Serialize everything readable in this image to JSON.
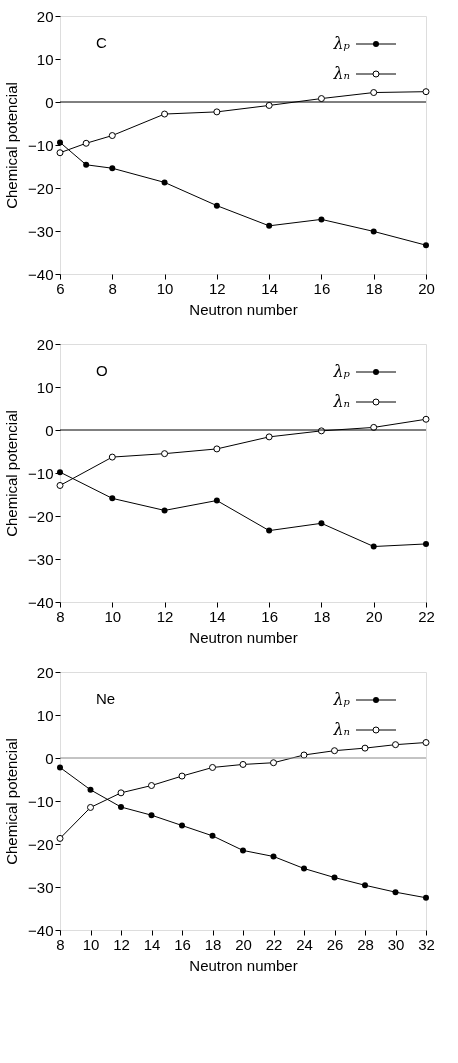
{
  "chart_data": [
    {
      "type": "line",
      "xlabel": "Neutron number",
      "ylabel": "Chemical potencial",
      "annotations": [
        "C"
      ],
      "x": [
        6,
        7,
        8,
        10,
        12,
        14,
        16,
        18,
        20
      ],
      "xlim": [
        6,
        20
      ],
      "ylim": [
        -40,
        20
      ],
      "xticks": [
        6,
        8,
        10,
        12,
        14,
        16,
        18,
        20
      ],
      "yticks": [
        -40,
        -30,
        -20,
        -10,
        0,
        10,
        20
      ],
      "ref_lines": [
        {
          "axis": "y",
          "value": 0,
          "color": "#000000"
        }
      ],
      "legend": "top right",
      "marker": "circle",
      "line_style": "solid",
      "series": [
        {
          "name": "λₚ",
          "color": "#000000",
          "values": [
            -9.4,
            -14.6,
            -15.4,
            -18.7,
            -24.1,
            -28.8,
            -27.3,
            -30.1,
            -33.3
          ]
        },
        {
          "name": "λₙ",
          "color": "#000000",
          "values": [
            -11.8,
            -9.6,
            -7.8,
            -2.8,
            -2.3,
            -0.8,
            0.8,
            2.2,
            2.4
          ]
        }
      ]
    },
    {
      "type": "line",
      "xlabel": "Neutron number",
      "ylabel": "Chemical potencial",
      "annotations": [
        "O"
      ],
      "x": [
        8,
        10,
        12,
        14,
        16,
        18,
        20,
        22
      ],
      "xlim": [
        8,
        22
      ],
      "ylim": [
        -40,
        20
      ],
      "xticks": [
        8,
        10,
        12,
        14,
        16,
        18,
        20,
        22
      ],
      "yticks": [
        -40,
        -30,
        -20,
        -10,
        0,
        10,
        20
      ],
      "ref_lines": [
        {
          "axis": "y",
          "value": 0,
          "color": "#000000"
        }
      ],
      "legend": "top right",
      "marker": "circle",
      "line_style": "solid",
      "series": [
        {
          "name": "λₚ",
          "color": "#000000",
          "values": [
            -9.8,
            -15.9,
            -18.7,
            -16.4,
            -23.4,
            -21.7,
            -27.1,
            -26.5
          ]
        },
        {
          "name": "λₙ",
          "color": "#000000",
          "values": [
            -12.9,
            -6.3,
            -5.5,
            -4.4,
            -1.6,
            -0.2,
            0.6,
            2.5
          ]
        }
      ]
    },
    {
      "type": "line",
      "xlabel": "Neutron number",
      "ylabel": "Chemical potencial",
      "annotations": [
        "Ne"
      ],
      "x": [
        8,
        10,
        12,
        14,
        16,
        18,
        20,
        22,
        24,
        26,
        28,
        30,
        32
      ],
      "xlim": [
        8,
        32
      ],
      "ylim": [
        -40,
        20
      ],
      "xticks": [
        8,
        10,
        12,
        14,
        16,
        18,
        20,
        22,
        24,
        26,
        28,
        30,
        32
      ],
      "yticks": [
        -40,
        -30,
        -20,
        -10,
        0,
        10,
        20
      ],
      "ref_lines": [
        {
          "axis": "y",
          "value": 0,
          "color": "#888888"
        }
      ],
      "legend": "top right",
      "marker": "circle",
      "line_style": "solid",
      "series": [
        {
          "name": "λₚ",
          "color": "#000000",
          "values": [
            -2.2,
            -7.4,
            -11.4,
            -13.3,
            -15.7,
            -18.1,
            -21.5,
            -22.9,
            -25.7,
            -27.8,
            -29.6,
            -31.2,
            -32.5
          ]
        },
        {
          "name": "λₙ",
          "color": "#000000",
          "values": [
            -18.7,
            -11.5,
            -8.1,
            -6.4,
            -4.2,
            -2.2,
            -1.5,
            -1.1,
            0.7,
            1.7,
            2.3,
            3.1,
            3.6
          ]
        }
      ]
    }
  ]
}
